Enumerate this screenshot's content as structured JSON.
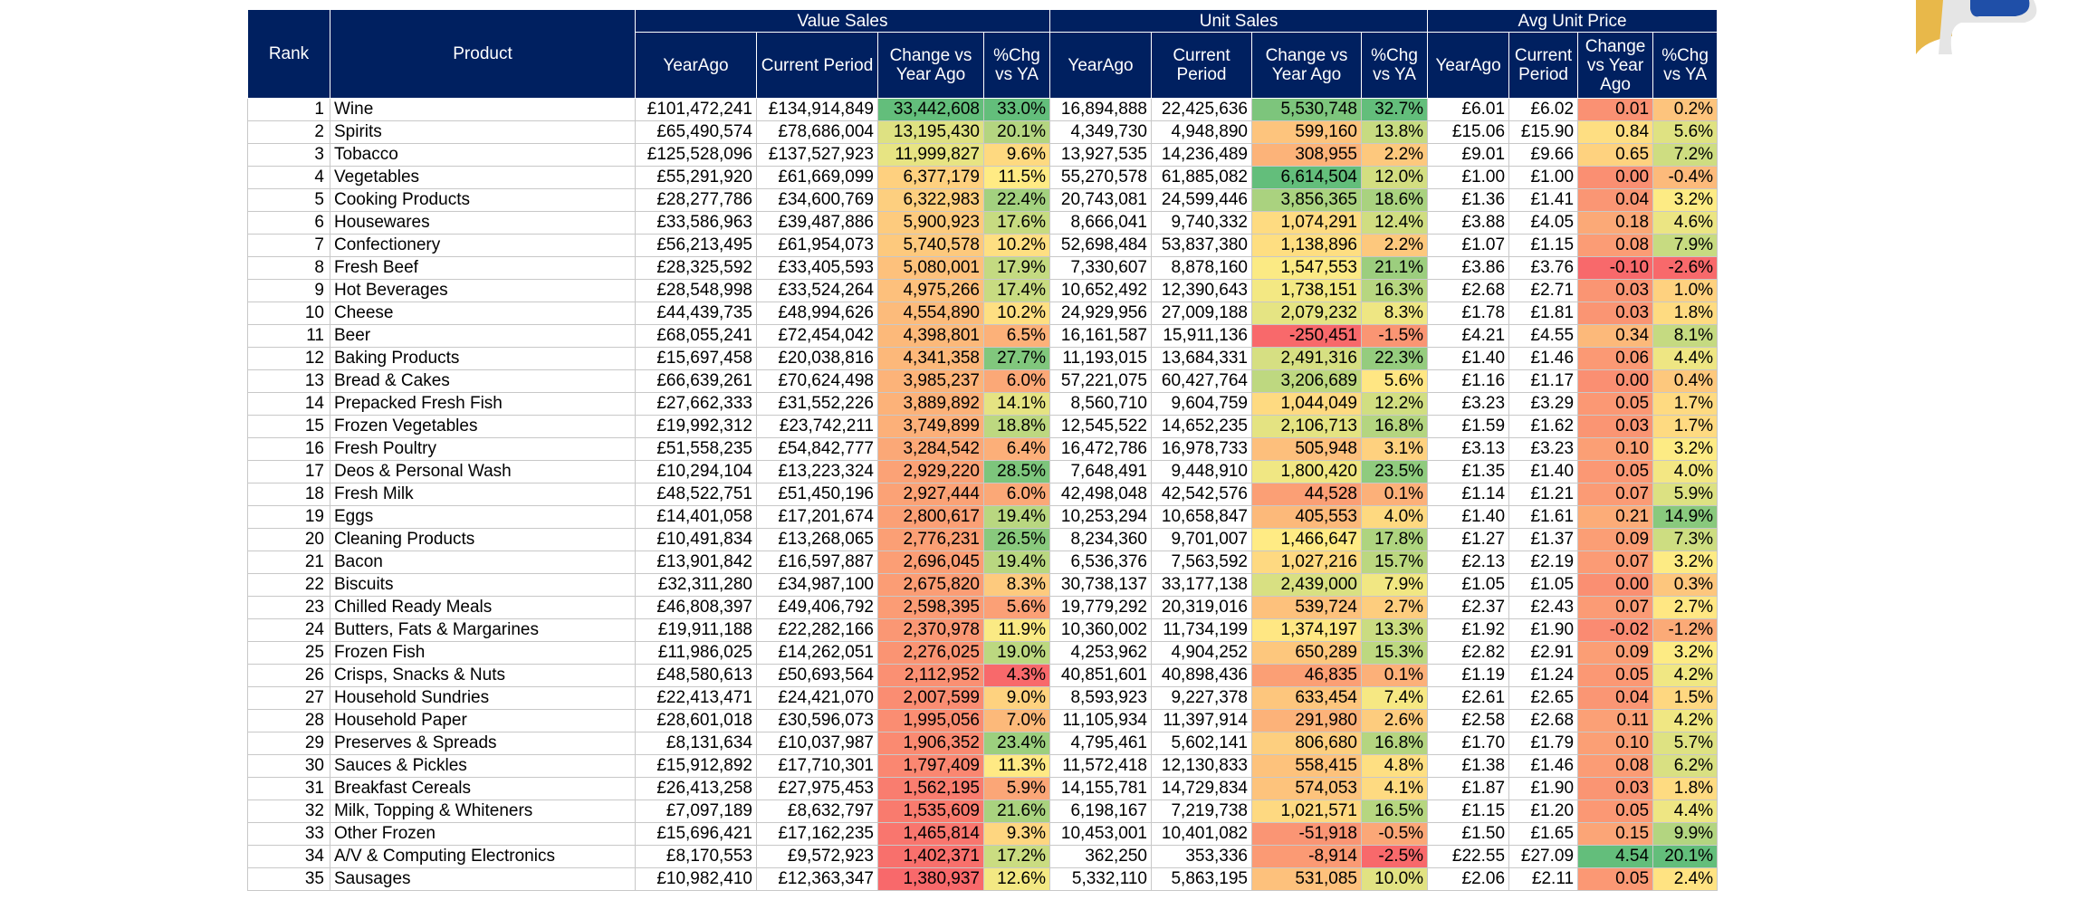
{
  "header": {
    "rank": "Rank",
    "product": "Product",
    "groups": {
      "value_sales": "Value Sales",
      "unit_sales": "Unit Sales",
      "avg_unit_price": "Avg Unit Price"
    },
    "value_cols": [
      "YearAgo",
      "Current Period",
      "Change vs Year Ago",
      "%Chg vs YA"
    ],
    "unit_cols": [
      "YearAgo",
      "Current Period",
      "Change vs Year Ago",
      "%Chg vs YA"
    ],
    "price_cols": [
      "YearAgo",
      "Current Period",
      "Change vs Year Ago",
      "%Chg vs YA"
    ]
  },
  "colors": {
    "header_bg": "#002060",
    "good": "#63BE7B",
    "mid": "#FFEB84",
    "bad": "#F8696B"
  },
  "rows": [
    [
      "1",
      "Wine",
      "£101,472,241",
      "£134,914,849",
      "33,442,608",
      "33.0%",
      "16,894,888",
      "22,425,636",
      "5,530,748",
      "32.7%",
      "£6.01",
      "£6.02",
      "0.01",
      "0.2%"
    ],
    [
      "2",
      "Spirits",
      "£65,490,574",
      "£78,686,004",
      "13,195,430",
      "20.1%",
      "4,349,730",
      "4,948,890",
      "599,160",
      "13.8%",
      "£15.06",
      "£15.90",
      "0.84",
      "5.6%"
    ],
    [
      "3",
      "Tobacco",
      "£125,528,096",
      "£137,527,923",
      "11,999,827",
      "9.6%",
      "13,927,535",
      "14,236,489",
      "308,955",
      "2.2%",
      "£9.01",
      "£9.66",
      "0.65",
      "7.2%"
    ],
    [
      "4",
      "Vegetables",
      "£55,291,920",
      "£61,669,099",
      "6,377,179",
      "11.5%",
      "55,270,578",
      "61,885,082",
      "6,614,504",
      "12.0%",
      "£1.00",
      "£1.00",
      "0.00",
      "-0.4%"
    ],
    [
      "5",
      "Cooking Products",
      "£28,277,786",
      "£34,600,769",
      "6,322,983",
      "22.4%",
      "20,743,081",
      "24,599,446",
      "3,856,365",
      "18.6%",
      "£1.36",
      "£1.41",
      "0.04",
      "3.2%"
    ],
    [
      "6",
      "Housewares",
      "£33,586,963",
      "£39,487,886",
      "5,900,923",
      "17.6%",
      "8,666,041",
      "9,740,332",
      "1,074,291",
      "12.4%",
      "£3.88",
      "£4.05",
      "0.18",
      "4.6%"
    ],
    [
      "7",
      "Confectionery",
      "£56,213,495",
      "£61,954,073",
      "5,740,578",
      "10.2%",
      "52,698,484",
      "53,837,380",
      "1,138,896",
      "2.2%",
      "£1.07",
      "£1.15",
      "0.08",
      "7.9%"
    ],
    [
      "8",
      "Fresh Beef",
      "£28,325,592",
      "£33,405,593",
      "5,080,001",
      "17.9%",
      "7,330,607",
      "8,878,160",
      "1,547,553",
      "21.1%",
      "£3.86",
      "£3.76",
      "-0.10",
      "-2.6%"
    ],
    [
      "9",
      "Hot Beverages",
      "£28,548,998",
      "£33,524,264",
      "4,975,266",
      "17.4%",
      "10,652,492",
      "12,390,643",
      "1,738,151",
      "16.3%",
      "£2.68",
      "£2.71",
      "0.03",
      "1.0%"
    ],
    [
      "10",
      "Cheese",
      "£44,439,735",
      "£48,994,626",
      "4,554,890",
      "10.2%",
      "24,929,956",
      "27,009,188",
      "2,079,232",
      "8.3%",
      "£1.78",
      "£1.81",
      "0.03",
      "1.8%"
    ],
    [
      "11",
      "Beer",
      "£68,055,241",
      "£72,454,042",
      "4,398,801",
      "6.5%",
      "16,161,587",
      "15,911,136",
      "-250,451",
      "-1.5%",
      "£4.21",
      "£4.55",
      "0.34",
      "8.1%"
    ],
    [
      "12",
      "Baking Products",
      "£15,697,458",
      "£20,038,816",
      "4,341,358",
      "27.7%",
      "11,193,015",
      "13,684,331",
      "2,491,316",
      "22.3%",
      "£1.40",
      "£1.46",
      "0.06",
      "4.4%"
    ],
    [
      "13",
      "Bread & Cakes",
      "£66,639,261",
      "£70,624,498",
      "3,985,237",
      "6.0%",
      "57,221,075",
      "60,427,764",
      "3,206,689",
      "5.6%",
      "£1.16",
      "£1.17",
      "0.00",
      "0.4%"
    ],
    [
      "14",
      "Prepacked Fresh Fish",
      "£27,662,333",
      "£31,552,226",
      "3,889,892",
      "14.1%",
      "8,560,710",
      "9,604,759",
      "1,044,049",
      "12.2%",
      "£3.23",
      "£3.29",
      "0.05",
      "1.7%"
    ],
    [
      "15",
      "Frozen Vegetables",
      "£19,992,312",
      "£23,742,211",
      "3,749,899",
      "18.8%",
      "12,545,522",
      "14,652,235",
      "2,106,713",
      "16.8%",
      "£1.59",
      "£1.62",
      "0.03",
      "1.7%"
    ],
    [
      "16",
      "Fresh Poultry",
      "£51,558,235",
      "£54,842,777",
      "3,284,542",
      "6.4%",
      "16,472,786",
      "16,978,733",
      "505,948",
      "3.1%",
      "£3.13",
      "£3.23",
      "0.10",
      "3.2%"
    ],
    [
      "17",
      "Deos & Personal Wash",
      "£10,294,104",
      "£13,223,324",
      "2,929,220",
      "28.5%",
      "7,648,491",
      "9,448,910",
      "1,800,420",
      "23.5%",
      "£1.35",
      "£1.40",
      "0.05",
      "4.0%"
    ],
    [
      "18",
      "Fresh Milk",
      "£48,522,751",
      "£51,450,196",
      "2,927,444",
      "6.0%",
      "42,498,048",
      "42,542,576",
      "44,528",
      "0.1%",
      "£1.14",
      "£1.21",
      "0.07",
      "5.9%"
    ],
    [
      "19",
      "Eggs",
      "£14,401,058",
      "£17,201,674",
      "2,800,617",
      "19.4%",
      "10,253,294",
      "10,658,847",
      "405,553",
      "4.0%",
      "£1.40",
      "£1.61",
      "0.21",
      "14.9%"
    ],
    [
      "20",
      "Cleaning Products",
      "£10,491,834",
      "£13,268,065",
      "2,776,231",
      "26.5%",
      "8,234,360",
      "9,701,007",
      "1,466,647",
      "17.8%",
      "£1.27",
      "£1.37",
      "0.09",
      "7.3%"
    ],
    [
      "21",
      "Bacon",
      "£13,901,842",
      "£16,597,887",
      "2,696,045",
      "19.4%",
      "6,536,376",
      "7,563,592",
      "1,027,216",
      "15.7%",
      "£2.13",
      "£2.19",
      "0.07",
      "3.2%"
    ],
    [
      "22",
      "Biscuits",
      "£32,311,280",
      "£34,987,100",
      "2,675,820",
      "8.3%",
      "30,738,137",
      "33,177,138",
      "2,439,000",
      "7.9%",
      "£1.05",
      "£1.05",
      "0.00",
      "0.3%"
    ],
    [
      "23",
      "Chilled Ready Meals",
      "£46,808,397",
      "£49,406,792",
      "2,598,395",
      "5.6%",
      "19,779,292",
      "20,319,016",
      "539,724",
      "2.7%",
      "£2.37",
      "£2.43",
      "0.07",
      "2.7%"
    ],
    [
      "24",
      "Butters, Fats & Margarines",
      "£19,911,188",
      "£22,282,166",
      "2,370,978",
      "11.9%",
      "10,360,002",
      "11,734,199",
      "1,374,197",
      "13.3%",
      "£1.92",
      "£1.90",
      "-0.02",
      "-1.2%"
    ],
    [
      "25",
      "Frozen Fish",
      "£11,986,025",
      "£14,262,051",
      "2,276,025",
      "19.0%",
      "4,253,962",
      "4,904,252",
      "650,289",
      "15.3%",
      "£2.82",
      "£2.91",
      "0.09",
      "3.2%"
    ],
    [
      "26",
      "Crisps, Snacks & Nuts",
      "£48,580,613",
      "£50,693,564",
      "2,112,952",
      "4.3%",
      "40,851,601",
      "40,898,436",
      "46,835",
      "0.1%",
      "£1.19",
      "£1.24",
      "0.05",
      "4.2%"
    ],
    [
      "27",
      "Household Sundries",
      "£22,413,471",
      "£24,421,070",
      "2,007,599",
      "9.0%",
      "8,593,923",
      "9,227,378",
      "633,454",
      "7.4%",
      "£2.61",
      "£2.65",
      "0.04",
      "1.5%"
    ],
    [
      "28",
      "Household Paper",
      "£28,601,018",
      "£30,596,073",
      "1,995,056",
      "7.0%",
      "11,105,934",
      "11,397,914",
      "291,980",
      "2.6%",
      "£2.58",
      "£2.68",
      "0.11",
      "4.2%"
    ],
    [
      "29",
      "Preserves & Spreads",
      "£8,131,634",
      "£10,037,987",
      "1,906,352",
      "23.4%",
      "4,795,461",
      "5,602,141",
      "806,680",
      "16.8%",
      "£1.70",
      "£1.79",
      "0.10",
      "5.7%"
    ],
    [
      "30",
      "Sauces & Pickles",
      "£15,912,892",
      "£17,710,301",
      "1,797,409",
      "11.3%",
      "11,572,418",
      "12,130,833",
      "558,415",
      "4.8%",
      "£1.38",
      "£1.46",
      "0.08",
      "6.2%"
    ],
    [
      "31",
      "Breakfast Cereals",
      "£26,413,258",
      "£27,975,453",
      "1,562,195",
      "5.9%",
      "14,155,781",
      "14,729,834",
      "574,053",
      "4.1%",
      "£1.87",
      "£1.90",
      "0.03",
      "1.8%"
    ],
    [
      "32",
      "Milk, Topping & Whiteners",
      "£7,097,189",
      "£8,632,797",
      "1,535,609",
      "21.6%",
      "6,198,167",
      "7,219,738",
      "1,021,571",
      "16.5%",
      "£1.15",
      "£1.20",
      "0.05",
      "4.4%"
    ],
    [
      "33",
      "Other Frozen",
      "£15,696,421",
      "£17,162,235",
      "1,465,814",
      "9.3%",
      "10,453,001",
      "10,401,082",
      "-51,918",
      "-0.5%",
      "£1.50",
      "£1.65",
      "0.15",
      "9.9%"
    ],
    [
      "34",
      "A/V & Computing Electronics",
      "£8,170,553",
      "£9,572,923",
      "1,402,371",
      "17.2%",
      "362,250",
      "353,336",
      "-8,914",
      "-2.5%",
      "£22.55",
      "£27.09",
      "4.54",
      "20.1%"
    ],
    [
      "35",
      "Sausages",
      "£10,982,410",
      "£12,363,347",
      "1,380,937",
      "12.6%",
      "5,332,110",
      "5,863,195",
      "531,085",
      "10.0%",
      "£2.06",
      "£2.11",
      "0.05",
      "2.4%"
    ]
  ]
}
